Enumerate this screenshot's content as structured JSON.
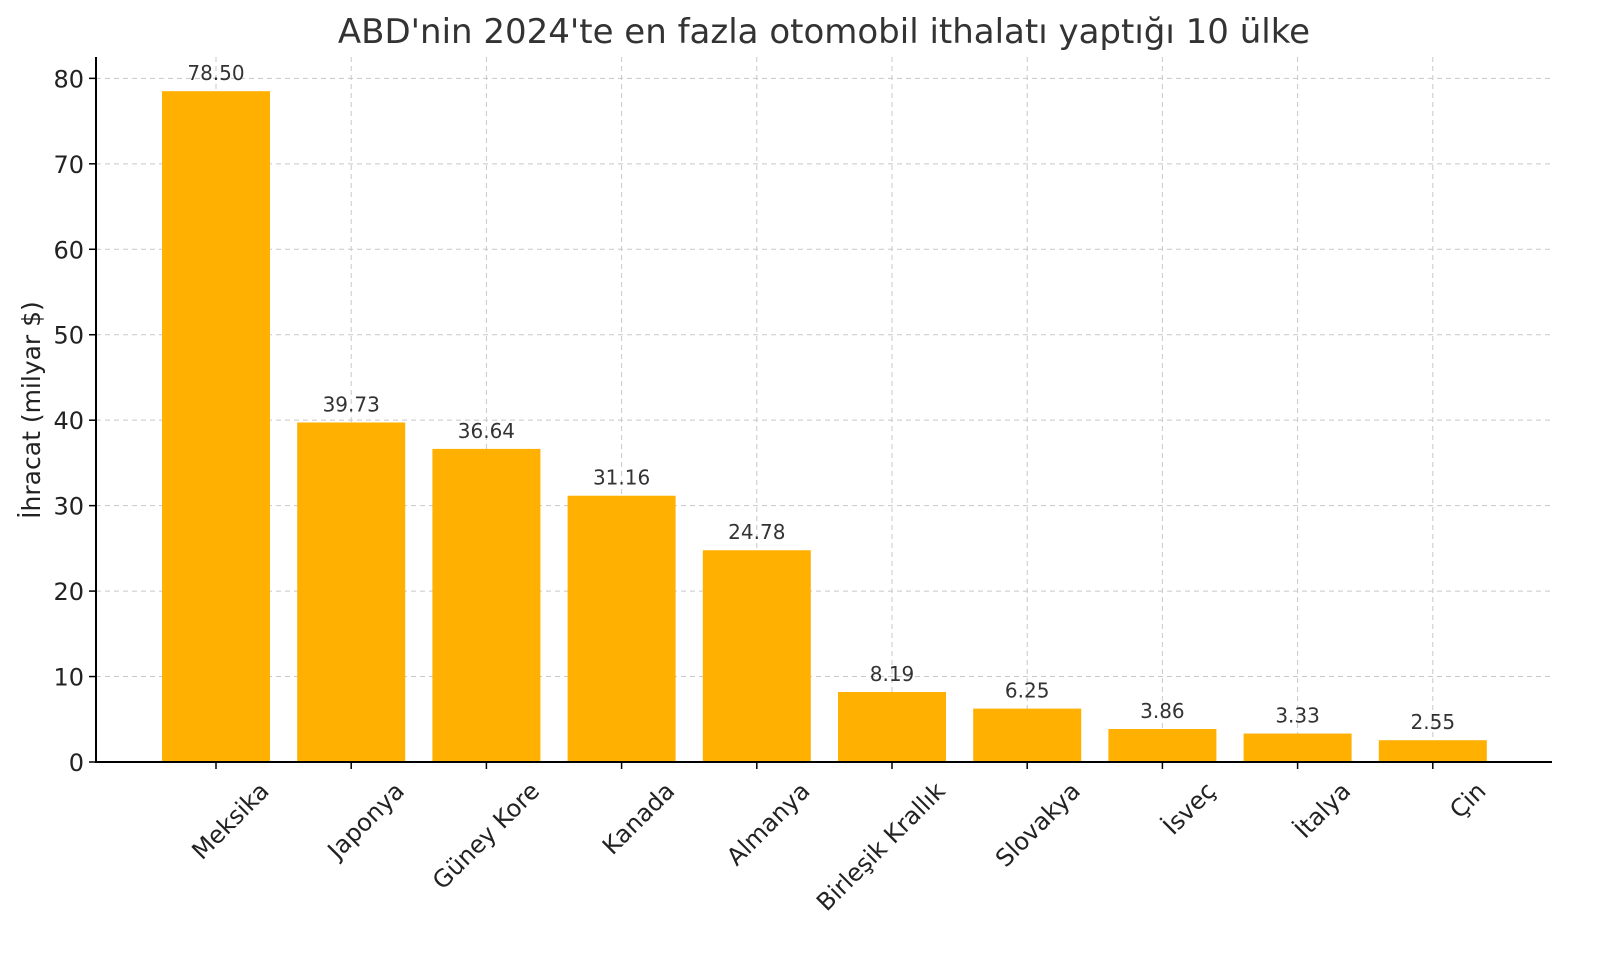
{
  "chart_data": {
    "type": "bar",
    "title": "ABD'nin 2024'te en fazla otomobil ithalatı yaptığı 10 ülke",
    "xlabel": "",
    "ylabel": "İhracat (milyar $)",
    "categories": [
      "Meksika",
      "Japonya",
      "Güney Kore",
      "Kanada",
      "Almanya",
      "Birleşik Krallık",
      "Slovakya",
      "İsveç",
      "İtalya",
      "Çin"
    ],
    "values": [
      78.5,
      39.73,
      36.64,
      31.16,
      24.78,
      8.19,
      6.25,
      3.86,
      3.33,
      2.55
    ],
    "data_labels": [
      "78.50",
      "39.73",
      "36.64",
      "31.16",
      "24.78",
      "8.19",
      "6.25",
      "3.86",
      "3.33",
      "2.55"
    ],
    "ylim": [
      0,
      82.5
    ],
    "yticks": [
      0,
      10,
      20,
      30,
      40,
      50,
      60,
      70,
      80
    ],
    "grid": true,
    "bar_color": "#FFB000"
  }
}
